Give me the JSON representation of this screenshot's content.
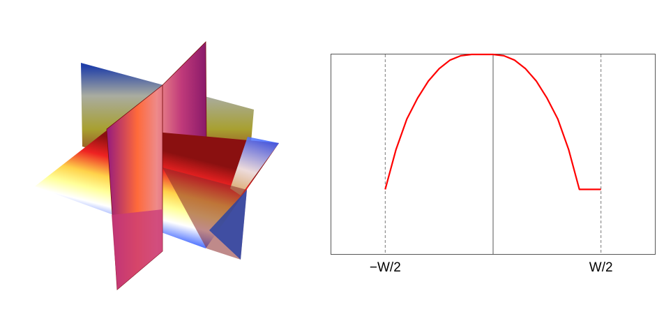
{
  "figure": {
    "left_panel": {
      "kind": "3d-cross-planes"
    },
    "right_panel": {
      "kind": "profile-plot"
    }
  },
  "chart_data": {
    "type": "line",
    "title": "",
    "xlabel": "",
    "ylabel": "",
    "xlim": [
      -0.75,
      0.75
    ],
    "ylim": [
      -0.05,
      1.0
    ],
    "x_tick_labels": [
      "−W/2",
      "W/2"
    ],
    "x_tick_values": [
      -0.5,
      0.5
    ],
    "reference_lines": {
      "vertical_dashed": [
        -0.5,
        0.5
      ],
      "vertical_solid": [
        0
      ]
    },
    "grid": false,
    "legend": "none",
    "series": [
      {
        "color": "#ff0000",
        "x": [
          -0.5,
          -0.45,
          -0.4,
          -0.35,
          -0.3,
          -0.25,
          -0.2,
          -0.15,
          -0.1,
          -0.05,
          0,
          0.05,
          0.1,
          0.15,
          0.2,
          0.25,
          0.3,
          0.35,
          0.4,
          0.45,
          0.5
        ],
        "y": [
          0.29,
          0.5,
          0.66,
          0.77,
          0.86,
          0.925,
          0.97,
          0.993,
          1.0,
          1.0,
          1.0,
          0.993,
          0.97,
          0.925,
          0.86,
          0.77,
          0.66,
          0.5,
          0.29,
          0.29,
          0.29
        ]
      }
    ]
  }
}
